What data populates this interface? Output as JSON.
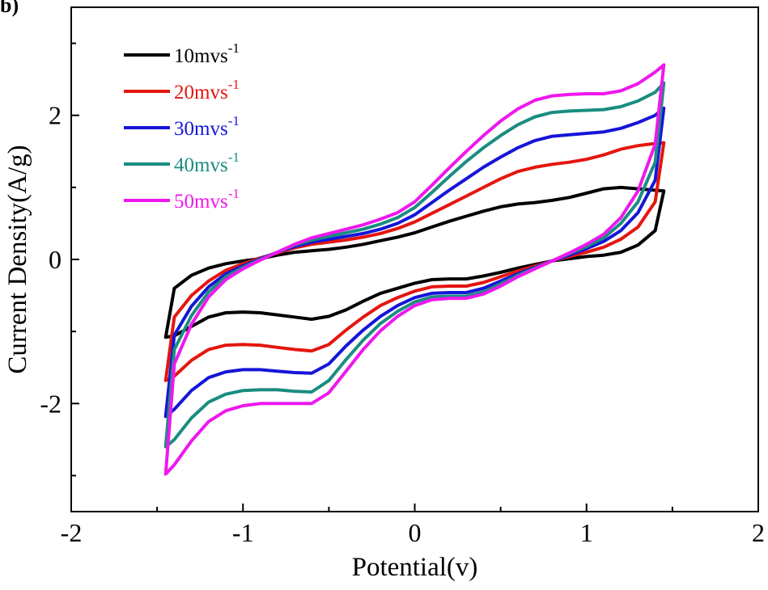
{
  "panel_label": "b)",
  "chart_data": {
    "type": "line",
    "title": "",
    "xlabel": "Potential(v)",
    "ylabel": "Current Density(A/g)",
    "xlim": [
      -2,
      2
    ],
    "ylim": [
      -3.5,
      3.5
    ],
    "xticks": [
      -2,
      -1,
      0,
      1,
      2
    ],
    "yticks": [
      -2,
      0,
      2
    ],
    "xtick_labels": [
      "-2",
      "-1",
      "0",
      "1",
      "2"
    ],
    "ytick_labels": [
      "-2",
      "0",
      "2"
    ],
    "grid": false,
    "legend_position": "top-left",
    "series": [
      {
        "name": "10mvs",
        "name_superscript": "-1",
        "color": "#000000",
        "points": [
          [
            -1.45,
            -1.08
          ],
          [
            -1.4,
            -1.06
          ],
          [
            -1.3,
            -0.93
          ],
          [
            -1.2,
            -0.8
          ],
          [
            -1.1,
            -0.74
          ],
          [
            -1.0,
            -0.73
          ],
          [
            -0.9,
            -0.74
          ],
          [
            -0.8,
            -0.77
          ],
          [
            -0.7,
            -0.8
          ],
          [
            -0.6,
            -0.83
          ],
          [
            -0.5,
            -0.79
          ],
          [
            -0.4,
            -0.7
          ],
          [
            -0.3,
            -0.58
          ],
          [
            -0.2,
            -0.47
          ],
          [
            -0.1,
            -0.4
          ],
          [
            0.0,
            -0.33
          ],
          [
            0.1,
            -0.28
          ],
          [
            0.2,
            -0.27
          ],
          [
            0.3,
            -0.27
          ],
          [
            0.4,
            -0.23
          ],
          [
            0.5,
            -0.18
          ],
          [
            0.6,
            -0.12
          ],
          [
            0.7,
            -0.07
          ],
          [
            0.8,
            -0.02
          ],
          [
            0.9,
            0.01
          ],
          [
            1.0,
            0.04
          ],
          [
            1.1,
            0.06
          ],
          [
            1.2,
            0.1
          ],
          [
            1.3,
            0.2
          ],
          [
            1.4,
            0.4
          ],
          [
            1.45,
            0.95
          ],
          [
            1.4,
            0.96
          ],
          [
            1.3,
            0.98
          ],
          [
            1.2,
            1.0
          ],
          [
            1.1,
            0.98
          ],
          [
            1.0,
            0.92
          ],
          [
            0.9,
            0.86
          ],
          [
            0.8,
            0.82
          ],
          [
            0.7,
            0.79
          ],
          [
            0.6,
            0.77
          ],
          [
            0.5,
            0.73
          ],
          [
            0.4,
            0.67
          ],
          [
            0.3,
            0.6
          ],
          [
            0.2,
            0.53
          ],
          [
            0.1,
            0.45
          ],
          [
            0.0,
            0.37
          ],
          [
            -0.1,
            0.31
          ],
          [
            -0.2,
            0.26
          ],
          [
            -0.3,
            0.21
          ],
          [
            -0.4,
            0.17
          ],
          [
            -0.5,
            0.14
          ],
          [
            -0.6,
            0.12
          ],
          [
            -0.7,
            0.1
          ],
          [
            -0.8,
            0.06
          ],
          [
            -0.9,
            0.01
          ],
          [
            -1.0,
            -0.02
          ],
          [
            -1.1,
            -0.06
          ],
          [
            -1.2,
            -0.12
          ],
          [
            -1.3,
            -0.22
          ],
          [
            -1.4,
            -0.4
          ],
          [
            -1.45,
            -1.08
          ]
        ]
      },
      {
        "name": "20mvs",
        "name_superscript": "-1",
        "color": "#e4160f",
        "points": [
          [
            -1.45,
            -1.68
          ],
          [
            -1.4,
            -1.62
          ],
          [
            -1.3,
            -1.4
          ],
          [
            -1.2,
            -1.25
          ],
          [
            -1.1,
            -1.19
          ],
          [
            -1.0,
            -1.18
          ],
          [
            -0.9,
            -1.19
          ],
          [
            -0.8,
            -1.22
          ],
          [
            -0.7,
            -1.25
          ],
          [
            -0.6,
            -1.27
          ],
          [
            -0.5,
            -1.18
          ],
          [
            -0.4,
            -0.98
          ],
          [
            -0.3,
            -0.8
          ],
          [
            -0.2,
            -0.64
          ],
          [
            -0.1,
            -0.53
          ],
          [
            0.0,
            -0.44
          ],
          [
            0.1,
            -0.38
          ],
          [
            0.2,
            -0.37
          ],
          [
            0.3,
            -0.37
          ],
          [
            0.4,
            -0.32
          ],
          [
            0.5,
            -0.24
          ],
          [
            0.6,
            -0.16
          ],
          [
            0.7,
            -0.09
          ],
          [
            0.8,
            -0.02
          ],
          [
            0.9,
            0.04
          ],
          [
            1.0,
            0.1
          ],
          [
            1.1,
            0.17
          ],
          [
            1.2,
            0.28
          ],
          [
            1.3,
            0.45
          ],
          [
            1.4,
            0.8
          ],
          [
            1.45,
            1.62
          ],
          [
            1.4,
            1.61
          ],
          [
            1.3,
            1.58
          ],
          [
            1.2,
            1.53
          ],
          [
            1.1,
            1.45
          ],
          [
            1.0,
            1.39
          ],
          [
            0.9,
            1.35
          ],
          [
            0.8,
            1.32
          ],
          [
            0.7,
            1.28
          ],
          [
            0.6,
            1.22
          ],
          [
            0.5,
            1.12
          ],
          [
            0.4,
            1.0
          ],
          [
            0.3,
            0.88
          ],
          [
            0.2,
            0.76
          ],
          [
            0.1,
            0.64
          ],
          [
            0.0,
            0.52
          ],
          [
            -0.1,
            0.43
          ],
          [
            -0.2,
            0.36
          ],
          [
            -0.3,
            0.31
          ],
          [
            -0.4,
            0.27
          ],
          [
            -0.5,
            0.24
          ],
          [
            -0.6,
            0.21
          ],
          [
            -0.7,
            0.16
          ],
          [
            -0.8,
            0.09
          ],
          [
            -0.9,
            0.02
          ],
          [
            -1.0,
            -0.06
          ],
          [
            -1.1,
            -0.15
          ],
          [
            -1.2,
            -0.3
          ],
          [
            -1.3,
            -0.5
          ],
          [
            -1.4,
            -0.8
          ],
          [
            -1.45,
            -1.68
          ]
        ]
      },
      {
        "name": "30mvs",
        "name_superscript": "-1",
        "color": "#1515d8",
        "points": [
          [
            -1.45,
            -2.18
          ],
          [
            -1.4,
            -2.08
          ],
          [
            -1.3,
            -1.82
          ],
          [
            -1.2,
            -1.64
          ],
          [
            -1.1,
            -1.56
          ],
          [
            -1.0,
            -1.53
          ],
          [
            -0.9,
            -1.53
          ],
          [
            -0.8,
            -1.55
          ],
          [
            -0.7,
            -1.57
          ],
          [
            -0.6,
            -1.58
          ],
          [
            -0.5,
            -1.45
          ],
          [
            -0.4,
            -1.2
          ],
          [
            -0.3,
            -0.98
          ],
          [
            -0.2,
            -0.79
          ],
          [
            -0.1,
            -0.64
          ],
          [
            0.0,
            -0.53
          ],
          [
            0.1,
            -0.47
          ],
          [
            0.2,
            -0.46
          ],
          [
            0.3,
            -0.46
          ],
          [
            0.4,
            -0.4
          ],
          [
            0.5,
            -0.3
          ],
          [
            0.6,
            -0.2
          ],
          [
            0.7,
            -0.11
          ],
          [
            0.8,
            -0.02
          ],
          [
            0.9,
            0.06
          ],
          [
            1.0,
            0.15
          ],
          [
            1.1,
            0.25
          ],
          [
            1.2,
            0.4
          ],
          [
            1.3,
            0.65
          ],
          [
            1.4,
            1.1
          ],
          [
            1.45,
            2.1
          ],
          [
            1.4,
            2.0
          ],
          [
            1.3,
            1.9
          ],
          [
            1.2,
            1.82
          ],
          [
            1.1,
            1.77
          ],
          [
            1.0,
            1.75
          ],
          [
            0.9,
            1.73
          ],
          [
            0.8,
            1.71
          ],
          [
            0.7,
            1.65
          ],
          [
            0.6,
            1.55
          ],
          [
            0.5,
            1.42
          ],
          [
            0.4,
            1.28
          ],
          [
            0.3,
            1.12
          ],
          [
            0.2,
            0.96
          ],
          [
            0.1,
            0.79
          ],
          [
            0.0,
            0.62
          ],
          [
            -0.1,
            0.5
          ],
          [
            -0.2,
            0.42
          ],
          [
            -0.3,
            0.36
          ],
          [
            -0.4,
            0.32
          ],
          [
            -0.5,
            0.28
          ],
          [
            -0.6,
            0.24
          ],
          [
            -0.7,
            0.18
          ],
          [
            -0.8,
            0.1
          ],
          [
            -0.9,
            0.01
          ],
          [
            -1.0,
            -0.09
          ],
          [
            -1.1,
            -0.2
          ],
          [
            -1.2,
            -0.38
          ],
          [
            -1.3,
            -0.65
          ],
          [
            -1.4,
            -1.05
          ],
          [
            -1.45,
            -2.18
          ]
        ]
      },
      {
        "name": "40mvs",
        "name_superscript": "-1",
        "color": "#1a8d80",
        "points": [
          [
            -1.45,
            -2.6
          ],
          [
            -1.4,
            -2.5
          ],
          [
            -1.3,
            -2.2
          ],
          [
            -1.2,
            -1.98
          ],
          [
            -1.1,
            -1.87
          ],
          [
            -1.0,
            -1.82
          ],
          [
            -0.9,
            -1.81
          ],
          [
            -0.8,
            -1.81
          ],
          [
            -0.7,
            -1.83
          ],
          [
            -0.6,
            -1.84
          ],
          [
            -0.5,
            -1.68
          ],
          [
            -0.4,
            -1.39
          ],
          [
            -0.3,
            -1.12
          ],
          [
            -0.2,
            -0.89
          ],
          [
            -0.1,
            -0.72
          ],
          [
            0.0,
            -0.59
          ],
          [
            0.1,
            -0.52
          ],
          [
            0.2,
            -0.51
          ],
          [
            0.3,
            -0.51
          ],
          [
            0.4,
            -0.45
          ],
          [
            0.5,
            -0.34
          ],
          [
            0.6,
            -0.22
          ],
          [
            0.7,
            -0.12
          ],
          [
            0.8,
            -0.02
          ],
          [
            0.9,
            0.08
          ],
          [
            1.0,
            0.18
          ],
          [
            1.1,
            0.3
          ],
          [
            1.2,
            0.5
          ],
          [
            1.3,
            0.8
          ],
          [
            1.4,
            1.35
          ],
          [
            1.45,
            2.45
          ],
          [
            1.4,
            2.32
          ],
          [
            1.3,
            2.2
          ],
          [
            1.2,
            2.12
          ],
          [
            1.1,
            2.08
          ],
          [
            1.0,
            2.07
          ],
          [
            0.9,
            2.06
          ],
          [
            0.8,
            2.04
          ],
          [
            0.7,
            1.98
          ],
          [
            0.6,
            1.87
          ],
          [
            0.5,
            1.72
          ],
          [
            0.4,
            1.55
          ],
          [
            0.3,
            1.36
          ],
          [
            0.2,
            1.15
          ],
          [
            0.1,
            0.93
          ],
          [
            0.0,
            0.72
          ],
          [
            -0.1,
            0.58
          ],
          [
            -0.2,
            0.49
          ],
          [
            -0.3,
            0.42
          ],
          [
            -0.4,
            0.37
          ],
          [
            -0.5,
            0.32
          ],
          [
            -0.6,
            0.27
          ],
          [
            -0.7,
            0.2
          ],
          [
            -0.8,
            0.1
          ],
          [
            -0.9,
            0.0
          ],
          [
            -1.0,
            -0.11
          ],
          [
            -1.1,
            -0.24
          ],
          [
            -1.2,
            -0.45
          ],
          [
            -1.3,
            -0.78
          ],
          [
            -1.4,
            -1.25
          ],
          [
            -1.45,
            -2.6
          ]
        ]
      },
      {
        "name": "50mvs",
        "name_superscript": "-1",
        "color": "#ee18ee",
        "points": [
          [
            -1.45,
            -2.98
          ],
          [
            -1.4,
            -2.85
          ],
          [
            -1.3,
            -2.52
          ],
          [
            -1.2,
            -2.25
          ],
          [
            -1.1,
            -2.1
          ],
          [
            -1.0,
            -2.03
          ],
          [
            -0.9,
            -2.0
          ],
          [
            -0.8,
            -2.0
          ],
          [
            -0.7,
            -2.0
          ],
          [
            -0.6,
            -2.0
          ],
          [
            -0.5,
            -1.85
          ],
          [
            -0.4,
            -1.55
          ],
          [
            -0.3,
            -1.25
          ],
          [
            -0.2,
            -0.99
          ],
          [
            -0.1,
            -0.79
          ],
          [
            0.0,
            -0.64
          ],
          [
            0.1,
            -0.56
          ],
          [
            0.2,
            -0.54
          ],
          [
            0.3,
            -0.54
          ],
          [
            0.4,
            -0.48
          ],
          [
            0.5,
            -0.37
          ],
          [
            0.6,
            -0.24
          ],
          [
            0.7,
            -0.13
          ],
          [
            0.8,
            -0.02
          ],
          [
            0.9,
            0.09
          ],
          [
            1.0,
            0.21
          ],
          [
            1.1,
            0.35
          ],
          [
            1.2,
            0.58
          ],
          [
            1.3,
            0.95
          ],
          [
            1.4,
            1.6
          ],
          [
            1.45,
            2.7
          ],
          [
            1.4,
            2.6
          ],
          [
            1.3,
            2.44
          ],
          [
            1.2,
            2.34
          ],
          [
            1.1,
            2.3
          ],
          [
            1.0,
            2.3
          ],
          [
            0.9,
            2.29
          ],
          [
            0.8,
            2.27
          ],
          [
            0.7,
            2.21
          ],
          [
            0.6,
            2.09
          ],
          [
            0.5,
            1.92
          ],
          [
            0.4,
            1.72
          ],
          [
            0.3,
            1.5
          ],
          [
            0.2,
            1.27
          ],
          [
            0.1,
            1.03
          ],
          [
            0.0,
            0.8
          ],
          [
            -0.1,
            0.65
          ],
          [
            -0.2,
            0.56
          ],
          [
            -0.3,
            0.48
          ],
          [
            -0.4,
            0.42
          ],
          [
            -0.5,
            0.36
          ],
          [
            -0.6,
            0.3
          ],
          [
            -0.7,
            0.21
          ],
          [
            -0.8,
            0.1
          ],
          [
            -0.9,
            -0.01
          ],
          [
            -1.0,
            -0.13
          ],
          [
            -1.1,
            -0.28
          ],
          [
            -1.2,
            -0.52
          ],
          [
            -1.3,
            -0.9
          ],
          [
            -1.4,
            -1.45
          ],
          [
            -1.45,
            -2.98
          ]
        ]
      }
    ]
  }
}
